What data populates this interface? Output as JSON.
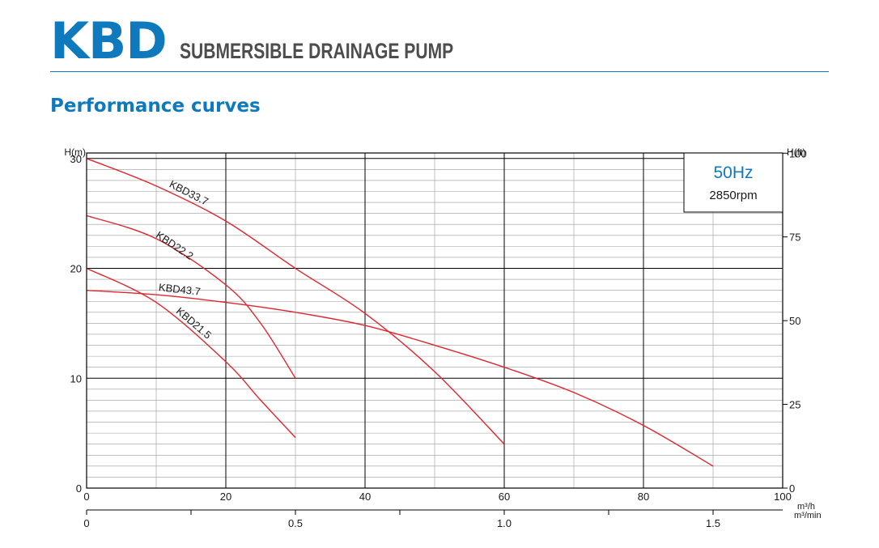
{
  "header": {
    "brand": "KBD",
    "product": "SUBMERSIBLE DRAINAGE PUMP",
    "section_title": "Performance curves"
  },
  "colors": {
    "brand_blue": "#0f79be",
    "curve_red": "#e0252e",
    "grid": "#000000"
  },
  "chart_data": {
    "type": "line",
    "title": "Performance curves",
    "info_box": {
      "frequency": "50Hz",
      "speed": "2850rpm"
    },
    "xlabel": "m³/h",
    "x2label": "m³/min",
    "ylabel": "H(m)",
    "y2label": "H(ft)",
    "xlim": [
      0,
      100
    ],
    "ylim": [
      0,
      30.5
    ],
    "x_ticks": [
      0,
      20,
      40,
      60,
      80,
      100
    ],
    "x_minor_gridlines": [
      10,
      30,
      50,
      70,
      90
    ],
    "x2_ticks": [
      0,
      0.5,
      1.0,
      1.5
    ],
    "x2_tick_labels": [
      "0",
      "0.5",
      "1.0",
      "1.5"
    ],
    "y_ticks": [
      0,
      10,
      20,
      30
    ],
    "y2_ticks": [
      0,
      25,
      50,
      75,
      100
    ],
    "grid": true,
    "series": [
      {
        "name": "KBD33.7",
        "x": [
          0,
          10,
          20,
          30,
          40,
          50,
          60
        ],
        "y": [
          30,
          27.5,
          24.3,
          20.0,
          15.9,
          10.6,
          4.0
        ]
      },
      {
        "name": "KBD22.2",
        "x": [
          0,
          10,
          20,
          25,
          30
        ],
        "y": [
          24.8,
          22.7,
          18.5,
          15.0,
          10.0
        ]
      },
      {
        "name": "KBD43.7",
        "x": [
          0,
          10,
          20,
          30,
          40,
          50,
          60,
          70,
          80,
          90
        ],
        "y": [
          18.0,
          17.6,
          16.9,
          16.0,
          14.8,
          13.0,
          11.0,
          8.7,
          5.7,
          2.0
        ]
      },
      {
        "name": "KBD21.5",
        "x": [
          0,
          10,
          20,
          25,
          30
        ],
        "y": [
          20.0,
          16.9,
          11.5,
          8.0,
          4.6
        ]
      }
    ]
  }
}
